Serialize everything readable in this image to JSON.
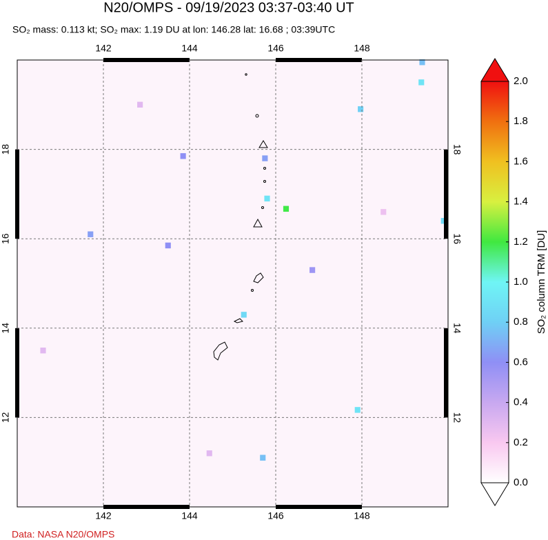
{
  "chart_data": {
    "type": "pixelmap",
    "title": "N20/OMPS - 09/19/2023 03:37-03:40 UT",
    "subtitle": "SO₂ mass: 0.113 kt; SO₂ max: 1.19 DU at lon: 146.28 lat: 16.68 ; 03:39UTC",
    "source": "Data: NASA N20/OMPS",
    "xlim": [
      140,
      150
    ],
    "ylim": [
      10,
      20
    ],
    "xticks": [
      142,
      144,
      146,
      148
    ],
    "yticks": [
      12,
      14,
      16,
      18
    ],
    "grid": true,
    "colorbar": {
      "label": "SO₂ column TRM [DU]",
      "lim": [
        0,
        2
      ],
      "ticks": [
        {
          "value": 0,
          "label": "0.0"
        },
        0.2,
        0.4,
        0.6,
        0.8,
        {
          "value": 1,
          "label": "1.0"
        },
        1.2,
        1.4,
        1.6,
        1.8,
        {
          "value": 2,
          "label": "2.0"
        }
      ],
      "colormap": [
        "#ffffff",
        "#f9c8f0",
        "#c8a8f0",
        "#8f8ff5",
        "#6fd0f5",
        "#6ff5f5",
        "#40e840",
        "#d8f040",
        "#f0c020",
        "#f07010",
        "#f01010"
      ]
    },
    "pixels": {
      "lon": [
        146.24,
        145.8,
        149.38,
        147.97,
        145.26,
        147.9,
        149.9,
        145.7,
        149.4,
        141.7,
        143.85,
        143.5,
        145.75,
        146.85,
        140.6,
        144.46,
        148.5,
        142.85
      ],
      "lat": [
        16.67,
        16.9,
        19.5,
        18.9,
        14.3,
        12.17,
        16.4,
        11.1,
        19.95,
        16.1,
        17.85,
        15.85,
        17.8,
        15.3,
        13.5,
        11.2,
        16.6,
        19.0
      ],
      "values": [
        1.19,
        0.9,
        0.9,
        0.8,
        0.85,
        0.9,
        0.85,
        0.75,
        0.75,
        0.65,
        0.6,
        0.6,
        0.65,
        0.55,
        0.3,
        0.3,
        0.25,
        0.3
      ]
    }
  }
}
